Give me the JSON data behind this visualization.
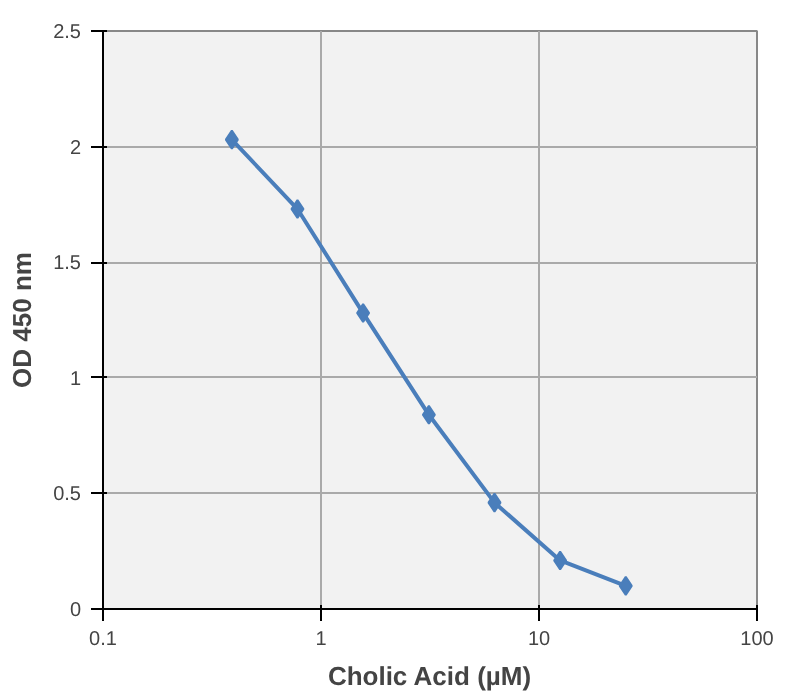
{
  "chart_data": {
    "type": "line",
    "xlabel": "Cholic Acid (µM)",
    "ylabel": "OD 450 nm",
    "log": "x",
    "grid": true,
    "marker": "diamond",
    "line_style": "solid",
    "xlim": [
      0.1,
      100
    ],
    "xticks": [
      0.1,
      1,
      10,
      100
    ],
    "ylim": [
      0,
      2.5
    ],
    "yticks": [
      0,
      0.5,
      1,
      1.5,
      2,
      2.5
    ],
    "x": [
      0.39,
      0.78,
      1.56,
      3.125,
      6.25,
      12.5,
      25
    ],
    "series": [
      {
        "color": "#4a7ebb",
        "values": [
          2.03,
          1.73,
          1.28,
          0.84,
          0.46,
          0.21,
          0.1
        ]
      }
    ]
  }
}
